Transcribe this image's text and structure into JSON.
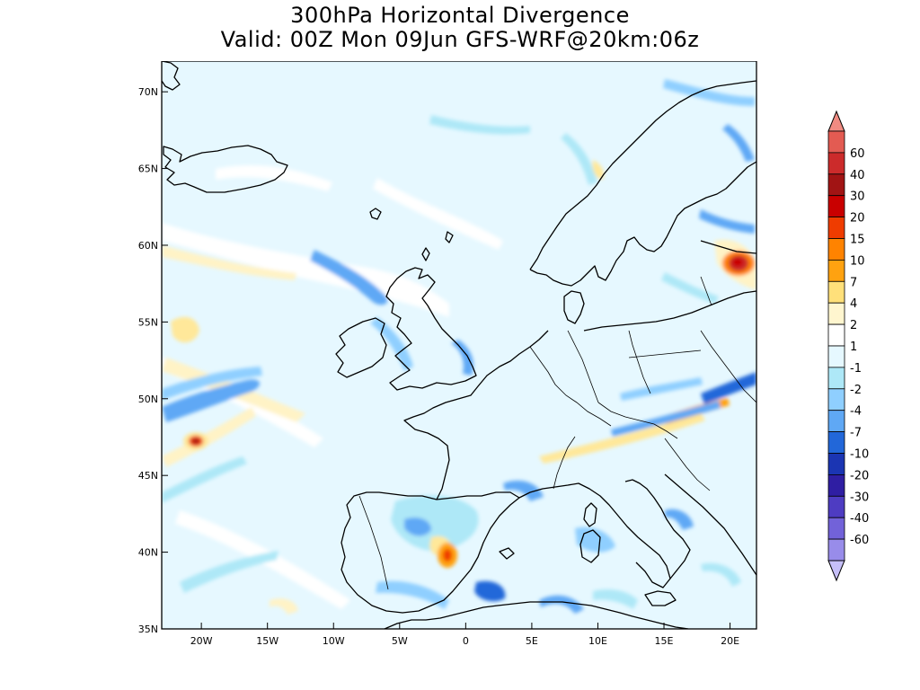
{
  "title": {
    "line1": "300hPa Horizontal Divergence",
    "line2": "Valid: 00Z Mon 09Jun GFS-WRF@20km:06z"
  },
  "map": {
    "lon_range": [
      -23,
      22
    ],
    "lat_range": [
      35,
      72
    ],
    "lat_ticks": [
      {
        "value": 70,
        "label": "70N"
      },
      {
        "value": 65,
        "label": "65N"
      },
      {
        "value": 60,
        "label": "60N"
      },
      {
        "value": 55,
        "label": "55N"
      },
      {
        "value": 50,
        "label": "50N"
      },
      {
        "value": 45,
        "label": "45N"
      },
      {
        "value": 40,
        "label": "40N"
      },
      {
        "value": 35,
        "label": "35N"
      }
    ],
    "lon_ticks": [
      {
        "value": -20,
        "label": "20W"
      },
      {
        "value": -15,
        "label": "15W"
      },
      {
        "value": -10,
        "label": "10W"
      },
      {
        "value": -5,
        "label": "5W"
      },
      {
        "value": 0,
        "label": "0"
      },
      {
        "value": 5,
        "label": "5E"
      },
      {
        "value": 10,
        "label": "10E"
      },
      {
        "value": 15,
        "label": "15E"
      },
      {
        "value": 20,
        "label": "20E"
      }
    ],
    "background_color": "#e6f8ff",
    "coast_color": "#000000"
  },
  "colorbar": {
    "labels": [
      "60",
      "40",
      "30",
      "20",
      "15",
      "10",
      "7",
      "4",
      "2",
      "1",
      "-1",
      "-2",
      "-4",
      "-7",
      "-10",
      "-20",
      "-30",
      "-40",
      "-60"
    ],
    "colors": [
      "#f08b82",
      "#e35b52",
      "#cc2b2b",
      "#a11414",
      "#c90000",
      "#ef3c00",
      "#ff8300",
      "#ffa210",
      "#ffe07a",
      "#fff6cf",
      "#ffffff",
      "#e6f8ff",
      "#aee8f7",
      "#8fcfff",
      "#5fa8f5",
      "#2267d9",
      "#1b35b3",
      "#2f1ea3",
      "#4e3cc2",
      "#7262d9",
      "#988cea",
      "#c6bff8"
    ]
  }
}
